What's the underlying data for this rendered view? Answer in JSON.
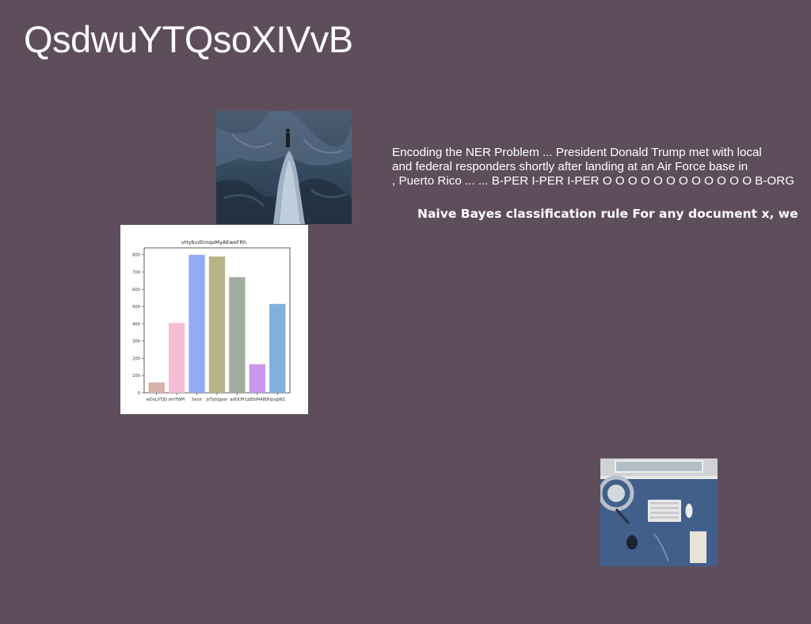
{
  "page": {
    "title": "QsdwuYTQsoXIVvB",
    "background_color": "#5e4e5c"
  },
  "text_blocks": {
    "ner_lines": [
      "Encoding the NER Problem ... President Donald Trump met with local",
      "and federal responders shortly after landing at an Air Force base in",
      ", Puerto Rico ... ... B-PER I-PER I-PER O O O O O O O O O O O O B-ORG"
    ],
    "naive_bayes": "Naive Bayes classification rule For any document x, we"
  },
  "images": {
    "mountain_photo": "person standing on rocky ridge",
    "desk_photo": "overhead view of desk with keyboard and lamp"
  },
  "chart_data": {
    "type": "bar",
    "title": "vHybvzEmqaMyAEweFRh",
    "categories": [
      "wDvLXTJQ",
      "dmTWPl",
      "SezIr",
      "JsTjdUjpon",
      "adOOff",
      "LbEbiMABW",
      "lpsgWZ"
    ],
    "values": [
      60,
      405,
      800,
      790,
      670,
      165,
      515
    ],
    "colors": [
      "#d7b2ab",
      "#f7bdd6",
      "#94aaf3",
      "#b9b285",
      "#a2ad9f",
      "#c896ea",
      "#82b0de"
    ],
    "ylim": [
      0,
      840
    ],
    "yticks": [
      0,
      100,
      200,
      300,
      400,
      500,
      600,
      700,
      800
    ],
    "xlabel": "",
    "ylabel": "",
    "grid": false
  }
}
